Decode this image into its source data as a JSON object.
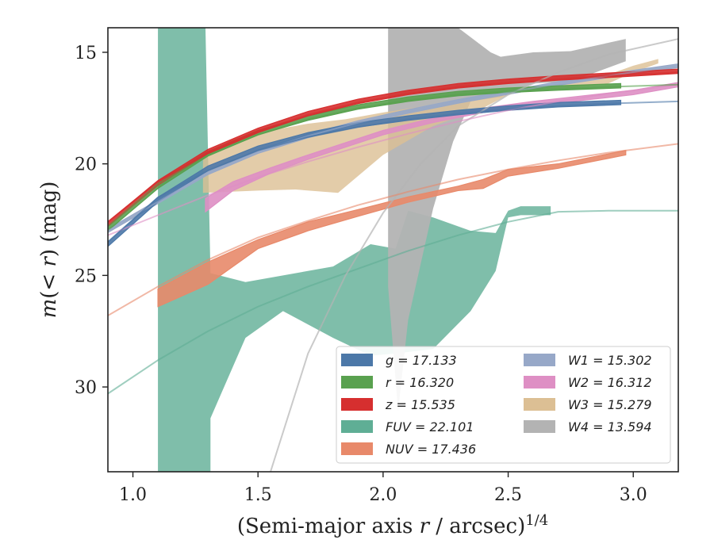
{
  "chart_data": {
    "type": "line",
    "xlabel": "(Semi-major axis r / arcsec)^1/4",
    "ylabel": "m(< r) (mag)",
    "xlim": [
      0.9,
      3.18
    ],
    "ylim": [
      33.8,
      13.9
    ],
    "y_inverted": true,
    "grid": false,
    "legend_position": "lower-right",
    "x_ticks": [
      "1.0",
      "1.5",
      "2.0",
      "2.5",
      "3.0"
    ],
    "y_ticks": [
      "15",
      "20",
      "25",
      "30"
    ],
    "series": [
      {
        "name": "g = 17.133",
        "color": "#4c78a8",
        "model": {
          "x": [
            0.9,
            1.1,
            1.3,
            1.5,
            1.7,
            1.9,
            2.1,
            2.3,
            2.5,
            2.7,
            2.9,
            3.18
          ],
          "y": [
            23.5,
            21.5,
            20.3,
            19.4,
            18.8,
            18.35,
            18.0,
            17.75,
            17.55,
            17.4,
            17.3,
            17.2
          ]
        },
        "band": {
          "x": [
            0.9,
            1.1,
            1.3,
            1.5,
            1.7,
            1.9,
            2.1,
            2.3,
            2.5,
            2.7,
            2.95
          ],
          "y": [
            23.6,
            21.6,
            20.2,
            19.3,
            18.7,
            18.25,
            17.95,
            17.7,
            17.5,
            17.35,
            17.25
          ],
          "w": [
            0.1,
            0.1,
            0.1,
            0.1,
            0.1,
            0.1,
            0.1,
            0.1,
            0.1,
            0.1,
            0.1
          ]
        }
      },
      {
        "name": "r = 16.320",
        "color": "#59a14f",
        "model": {
          "x": [
            0.9,
            1.1,
            1.3,
            1.5,
            1.7,
            1.9,
            2.1,
            2.3,
            2.5,
            2.7,
            2.9,
            3.18
          ],
          "y": [
            22.8,
            20.9,
            19.6,
            18.7,
            18.0,
            17.5,
            17.15,
            16.9,
            16.75,
            16.65,
            16.55,
            16.45
          ]
        },
        "band": {
          "x": [
            0.9,
            1.1,
            1.3,
            1.5,
            1.7,
            1.9,
            2.1,
            2.3,
            2.5,
            2.7,
            2.95
          ],
          "y": [
            22.9,
            21.0,
            19.55,
            18.6,
            17.95,
            17.45,
            17.1,
            16.85,
            16.7,
            16.6,
            16.5
          ],
          "w": [
            0.1,
            0.1,
            0.1,
            0.1,
            0.1,
            0.1,
            0.1,
            0.1,
            0.1,
            0.1,
            0.1
          ]
        }
      },
      {
        "name": "z = 15.535",
        "color": "#d62f2f",
        "model": {
          "x": [
            0.9,
            1.1,
            1.3,
            1.5,
            1.7,
            1.9,
            2.1,
            2.3,
            2.5,
            2.7,
            2.9,
            3.18
          ],
          "y": [
            22.6,
            20.8,
            19.5,
            18.55,
            17.8,
            17.25,
            16.85,
            16.55,
            16.35,
            16.2,
            16.05,
            15.9
          ]
        },
        "band": {
          "x": [
            0.9,
            1.1,
            1.3,
            1.5,
            1.7,
            1.9,
            2.1,
            2.3,
            2.5,
            2.7,
            2.95,
            3.18
          ],
          "y": [
            22.7,
            20.85,
            19.45,
            18.5,
            17.75,
            17.2,
            16.8,
            16.5,
            16.3,
            16.15,
            16.0,
            15.85
          ],
          "w": [
            0.1,
            0.1,
            0.1,
            0.1,
            0.1,
            0.1,
            0.1,
            0.1,
            0.1,
            0.1,
            0.1,
            0.1
          ]
        }
      },
      {
        "name": "FUV = 22.101",
        "color": "#5fae95",
        "model": {
          "x": [
            0.9,
            1.1,
            1.3,
            1.5,
            1.7,
            1.9,
            2.1,
            2.3,
            2.5,
            2.7,
            2.9,
            3.18
          ],
          "y": [
            30.3,
            28.8,
            27.5,
            26.4,
            25.5,
            24.7,
            23.9,
            23.2,
            22.6,
            22.15,
            22.1,
            22.1
          ]
        },
        "band_poly": {
          "x": [
            1.1,
            1.29,
            1.31,
            1.45,
            1.6,
            1.8,
            1.95,
            2.05,
            2.1,
            2.2,
            2.35,
            2.45,
            2.5,
            2.55,
            2.67,
            2.67,
            2.55,
            2.5,
            2.45,
            2.35,
            2.2,
            2.05,
            1.95,
            1.8,
            1.6,
            1.45,
            1.31,
            1.31,
            1.29,
            1.1
          ],
          "y": [
            13.9,
            13.9,
            24.9,
            25.3,
            25.0,
            24.6,
            23.6,
            23.8,
            22.1,
            22.4,
            23.0,
            23.1,
            22.1,
            21.9,
            21.9,
            22.3,
            22.3,
            22.4,
            24.8,
            26.6,
            28.3,
            28.5,
            28.6,
            27.8,
            26.6,
            27.8,
            31.4,
            33.8,
            33.8,
            33.8
          ]
        }
      },
      {
        "name": "NUV = 17.436",
        "color": "#e8896a",
        "model": {
          "x": [
            0.9,
            1.1,
            1.3,
            1.5,
            1.7,
            1.9,
            2.1,
            2.3,
            2.5,
            2.7,
            2.9,
            3.18
          ],
          "y": [
            26.8,
            25.5,
            24.3,
            23.3,
            22.55,
            21.85,
            21.25,
            20.7,
            20.25,
            19.85,
            19.5,
            19.1
          ]
        },
        "band": {
          "x": [
            1.1,
            1.3,
            1.5,
            1.7,
            1.9,
            2.1,
            2.3,
            2.4,
            2.5,
            2.7,
            2.97
          ],
          "y": [
            26.0,
            24.9,
            23.6,
            22.8,
            22.2,
            21.6,
            21.1,
            20.9,
            20.4,
            20.1,
            19.5
          ],
          "w": [
            0.4,
            0.5,
            0.2,
            0.2,
            0.15,
            0.12,
            0.1,
            0.2,
            0.15,
            0.1,
            0.1
          ]
        }
      },
      {
        "name": "W1 = 15.302",
        "color": "#97a8c8",
        "model": {
          "x": [
            0.9,
            1.1,
            1.3,
            1.5,
            1.7,
            1.9,
            2.1,
            2.3,
            2.5,
            2.7,
            2.9,
            3.18
          ],
          "y": [
            23.0,
            21.7,
            20.4,
            19.45,
            18.75,
            18.15,
            17.65,
            17.2,
            16.8,
            16.4,
            16.05,
            15.6
          ]
        },
        "band": {
          "x": [
            0.9,
            1.1,
            1.3,
            1.5,
            1.7,
            1.9,
            2.1,
            2.3,
            2.5,
            2.7,
            2.9,
            3.18
          ],
          "y": [
            23.0,
            21.7,
            20.4,
            19.45,
            18.75,
            18.15,
            17.65,
            17.2,
            16.8,
            16.4,
            16.05,
            15.6
          ],
          "w": [
            0.08,
            0.08,
            0.08,
            0.08,
            0.08,
            0.08,
            0.08,
            0.08,
            0.08,
            0.08,
            0.08,
            0.08
          ]
        }
      },
      {
        "name": "W2 = 16.312",
        "color": "#de8fc4",
        "model": {
          "x": [
            0.9,
            1.1,
            1.3,
            1.5,
            1.7,
            1.9,
            2.1,
            2.3,
            2.5,
            2.7,
            2.9,
            3.18
          ],
          "y": [
            23.2,
            22.3,
            21.4,
            20.6,
            19.9,
            19.25,
            18.65,
            18.1,
            17.6,
            17.2,
            16.85,
            16.45
          ]
        },
        "band": {
          "x": [
            1.29,
            1.4,
            1.55,
            1.7,
            1.85,
            2.0,
            2.2,
            2.4,
            2.6,
            2.8,
            3.0,
            3.18
          ],
          "y": [
            21.85,
            21.0,
            20.3,
            19.7,
            19.15,
            18.6,
            18.05,
            17.6,
            17.3,
            17.05,
            16.8,
            16.45
          ],
          "w": [
            0.3,
            0.2,
            0.12,
            0.1,
            0.1,
            0.1,
            0.1,
            0.1,
            0.1,
            0.1,
            0.1,
            0.1
          ]
        }
      },
      {
        "name": "W3 = 15.279",
        "color": "#dcbf94",
        "band_poly": {
          "x": [
            1.28,
            1.4,
            1.55,
            1.7,
            1.85,
            2.0,
            2.2,
            2.4,
            2.6,
            2.75,
            2.9,
            3.0,
            3.1,
            3.1,
            3.0,
            2.9,
            2.75,
            2.6,
            2.5,
            2.4,
            2.2,
            2.0,
            1.82,
            1.65,
            1.5,
            1.28
          ],
          "y": [
            19.6,
            18.9,
            18.5,
            18.2,
            18.0,
            17.7,
            17.35,
            17.0,
            16.65,
            16.3,
            16.0,
            15.6,
            15.3,
            15.5,
            15.9,
            16.4,
            16.6,
            16.7,
            16.9,
            17.5,
            18.3,
            19.6,
            21.3,
            21.15,
            21.2,
            21.3
          ]
        }
      },
      {
        "name": "W4 = 13.594",
        "color": "#b3b3b3",
        "model": {
          "x": [
            1.55,
            1.7,
            1.85,
            2.0,
            2.15,
            2.3,
            2.5,
            2.7,
            2.9,
            3.18
          ],
          "y": [
            33.8,
            28.5,
            25.0,
            22.2,
            20.0,
            18.3,
            16.9,
            15.9,
            15.1,
            14.4
          ]
        },
        "band_poly": {
          "x": [
            2.02,
            2.3,
            2.43,
            2.47,
            2.6,
            2.75,
            2.85,
            2.97,
            2.97,
            2.85,
            2.75,
            2.6,
            2.47,
            2.35,
            2.28,
            2.2,
            2.1,
            2.06,
            2.02
          ],
          "y": [
            13.9,
            13.9,
            15.0,
            15.2,
            15.0,
            14.95,
            14.7,
            14.4,
            15.4,
            15.9,
            16.3,
            16.4,
            17.0,
            17.2,
            19.0,
            22.0,
            27.0,
            31.1,
            25.5
          ]
        }
      }
    ]
  },
  "legend": {
    "left": [
      {
        "label": "g = 17.133",
        "color": "#4c78a8"
      },
      {
        "label": "r = 16.320",
        "color": "#59a14f"
      },
      {
        "label": "z = 15.535",
        "color": "#d62f2f"
      },
      {
        "label": "FUV = 22.101",
        "color": "#5fae95"
      },
      {
        "label": "NUV = 17.436",
        "color": "#e8896a"
      }
    ],
    "right": [
      {
        "label": "W1 = 15.302",
        "color": "#97a8c8"
      },
      {
        "label": "W2 = 16.312",
        "color": "#de8fc4"
      },
      {
        "label": "W3 = 15.279",
        "color": "#dcbf94"
      },
      {
        "label": "W4 = 13.594",
        "color": "#b3b3b3"
      }
    ]
  }
}
